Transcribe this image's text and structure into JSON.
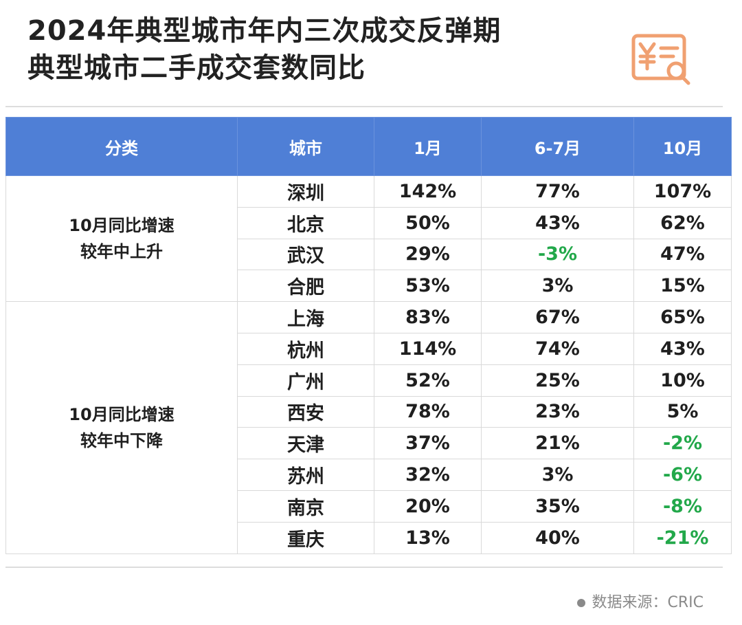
{
  "title": {
    "line1": "2024年典型城市年内三次成交反弹期",
    "line2": "典型城市二手成交套数同比"
  },
  "logo_icon": "yen-document-search-icon",
  "accent_color": "#4f7fd6",
  "negative_color": "#22a84a",
  "chart_data": {
    "type": "table",
    "columns": [
      "分类",
      "城市",
      "1月",
      "6-7月",
      "10月"
    ],
    "groups": [
      {
        "category_lines": [
          "10月同比增速",
          "较年中上升"
        ],
        "rows": [
          {
            "city": "深圳",
            "jan": "142%",
            "junjul": "77%",
            "oct": "107%"
          },
          {
            "city": "北京",
            "jan": "50%",
            "junjul": "43%",
            "oct": "62%"
          },
          {
            "city": "武汉",
            "jan": "29%",
            "junjul": "-3%",
            "oct": "47%"
          },
          {
            "city": "合肥",
            "jan": "53%",
            "junjul": "3%",
            "oct": "15%"
          }
        ]
      },
      {
        "category_lines": [
          "10月同比增速",
          "较年中下降"
        ],
        "rows": [
          {
            "city": "上海",
            "jan": "83%",
            "junjul": "67%",
            "oct": "65%"
          },
          {
            "city": "杭州",
            "jan": "114%",
            "junjul": "74%",
            "oct": "43%"
          },
          {
            "city": "广州",
            "jan": "52%",
            "junjul": "25%",
            "oct": "10%"
          },
          {
            "city": "西安",
            "jan": "78%",
            "junjul": "23%",
            "oct": "5%"
          },
          {
            "city": "天津",
            "jan": "37%",
            "junjul": "21%",
            "oct": "-2%"
          },
          {
            "city": "苏州",
            "jan": "32%",
            "junjul": "3%",
            "oct": "-6%"
          },
          {
            "city": "南京",
            "jan": "20%",
            "junjul": "35%",
            "oct": "-8%"
          },
          {
            "city": "重庆",
            "jan": "13%",
            "junjul": "40%",
            "oct": "-21%"
          }
        ]
      }
    ]
  },
  "source": "数据来源：CRIC"
}
